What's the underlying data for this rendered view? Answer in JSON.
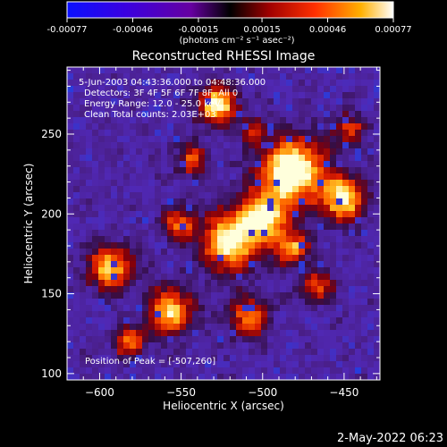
{
  "colorbar": {
    "tick_labels": [
      "-0.00077",
      "-0.00046",
      "-0.00015",
      "0.00015",
      "0.00046",
      "0.00077"
    ],
    "tick_values": [
      -0.00077,
      -0.00046,
      -0.00015,
      0.00015,
      0.00046,
      0.00077
    ],
    "range": [
      -0.00077,
      0.00077
    ],
    "units_label": "(photons cm⁻² s⁻¹ asec⁻²)"
  },
  "chart": {
    "title": "Reconstructed RHESSI Image",
    "xlabel": "Heliocentric X (arcsec)",
    "ylabel": "Heliocentric Y (arcsec)",
    "xlim": [
      -620,
      -428
    ],
    "ylim": [
      96,
      292
    ],
    "x_ticks": [
      -600,
      -550,
      -500,
      -450
    ],
    "y_ticks": [
      100,
      150,
      200,
      250
    ],
    "x_tick_labels": [
      "−600",
      "−550",
      "−500",
      "−450"
    ],
    "y_tick_labels": [
      "100",
      "150",
      "200",
      "250"
    ]
  },
  "info_lines": [
    "5-Jun-2003 04:43:36.000 to 04:48:36.000",
    "Detectors: 3F 4F 5F 6F 7F 8F, All 0",
    "Energy Range: 12.0 - 25.0 keV",
    "Clean    Total counts: 2.03E+03"
  ],
  "peak_text": "Position of Peak = [-507,260]",
  "timestamp": "2-May-2022 06:23",
  "colors": {
    "background": "#000000",
    "text": "#ffffff"
  }
}
